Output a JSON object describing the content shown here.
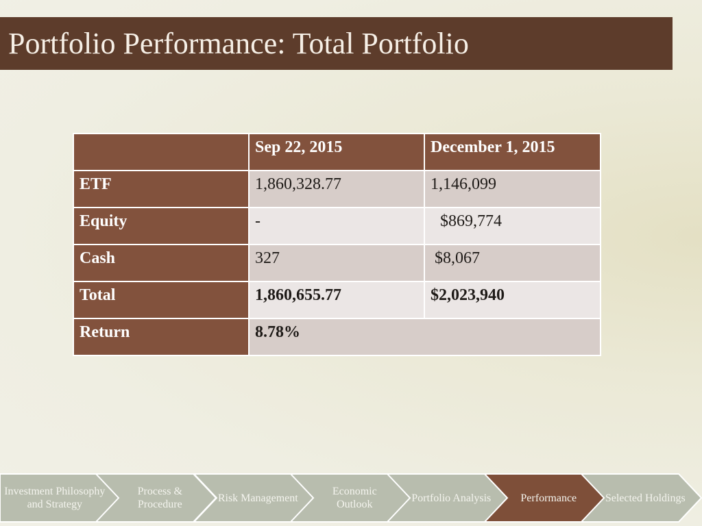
{
  "slide": {
    "title": "Portfolio Performance: Total Portfolio"
  },
  "table": {
    "headers": [
      "",
      "Sep 22, 2015",
      "December 1, 2015"
    ],
    "rows": [
      {
        "label": "ETF",
        "col1": "1,860,328.77",
        "col2": "1,146,099"
      },
      {
        "label": "Equity",
        "col1": "-",
        "col2": "$869,774"
      },
      {
        "label": "Cash",
        "col1": "327",
        "col2": "$8,067"
      },
      {
        "label": "Total",
        "col1": "1,860,655.77",
        "col2": "$2,023,940"
      },
      {
        "label": "Return",
        "col1": "8.78%"
      }
    ]
  },
  "nav": {
    "items": [
      {
        "label": "Investment Philosophy and Strategy",
        "active": false
      },
      {
        "label": "Process & Procedure",
        "active": false
      },
      {
        "label": "Risk Management",
        "active": false
      },
      {
        "label": "Economic Outlook",
        "active": false
      },
      {
        "label": "Portfolio Analysis",
        "active": false
      },
      {
        "label": "Performance",
        "active": true
      },
      {
        "label": "Selected Holdings",
        "active": false
      }
    ],
    "colors": {
      "inactive": "#b8bdae",
      "active": "#7e4f39",
      "stroke": "#ffffff"
    }
  }
}
